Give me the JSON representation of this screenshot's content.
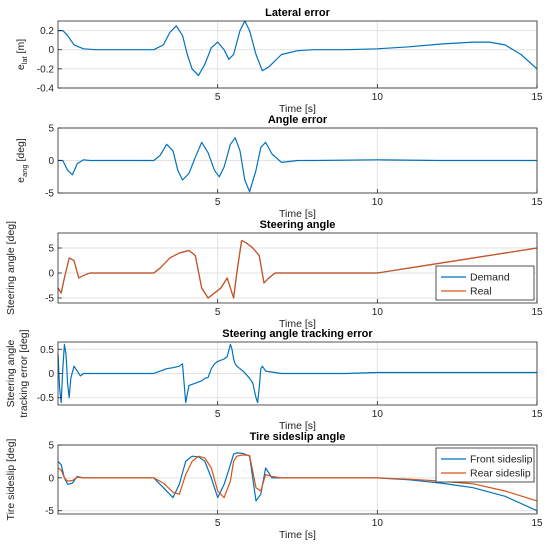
{
  "chart_data": [
    {
      "type": "line",
      "title": "Lateral error",
      "xlabel": "Time [s]",
      "ylabel": "e",
      "ylabel_sub": "lat",
      "ylabel_unit": " [m]",
      "xlim": [
        0,
        15
      ],
      "ylim": [
        -0.4,
        0.3
      ],
      "xticks": [
        5,
        10,
        15
      ],
      "yticks": [
        -0.4,
        -0.2,
        0,
        0.2
      ],
      "ytick_labels": [
        "-0.4",
        "-0.2",
        "0",
        "0.2"
      ],
      "grid": true,
      "series": [
        {
          "color": "#0072BD",
          "x": [
            0,
            0.15,
            0.3,
            0.5,
            0.8,
            1.2,
            2,
            3,
            3.3,
            3.5,
            3.7,
            3.9,
            4.05,
            4.2,
            4.4,
            4.6,
            4.8,
            5.0,
            5.2,
            5.35,
            5.5,
            5.7,
            5.85,
            6.0,
            6.2,
            6.4,
            6.6,
            7,
            7.5,
            8,
            9,
            10,
            10.5,
            11,
            12,
            13,
            13.5,
            14,
            14.5,
            15
          ],
          "y": [
            0.2,
            0.2,
            0.15,
            0.05,
            0.01,
            0.0,
            0.0,
            0.0,
            0.05,
            0.18,
            0.25,
            0.15,
            -0.05,
            -0.2,
            -0.27,
            -0.15,
            0.02,
            0.08,
            0.0,
            -0.1,
            -0.05,
            0.2,
            0.3,
            0.2,
            -0.05,
            -0.22,
            -0.18,
            -0.05,
            -0.01,
            0.0,
            0.0,
            0.01,
            0.02,
            0.03,
            0.06,
            0.08,
            0.08,
            0.05,
            -0.05,
            -0.2
          ]
        }
      ]
    },
    {
      "type": "line",
      "title": "Angle error",
      "xlabel": "Time [s]",
      "ylabel": "e",
      "ylabel_sub": "ang",
      "ylabel_unit": " [deg]",
      "xlim": [
        0,
        15
      ],
      "ylim": [
        -5,
        5
      ],
      "xticks": [
        5,
        10,
        15
      ],
      "yticks": [
        -5,
        0,
        5
      ],
      "ytick_labels": [
        "-5",
        "0",
        "5"
      ],
      "grid": true,
      "series": [
        {
          "color": "#0072BD",
          "x": [
            0,
            0.15,
            0.3,
            0.45,
            0.6,
            0.8,
            1,
            1.5,
            3,
            3.2,
            3.4,
            3.6,
            3.75,
            3.9,
            4.1,
            4.3,
            4.5,
            4.7,
            4.9,
            5.05,
            5.2,
            5.4,
            5.55,
            5.7,
            5.85,
            6.0,
            6.2,
            6.35,
            6.5,
            6.7,
            7,
            7.5,
            8,
            10,
            12,
            15
          ],
          "y": [
            0,
            0,
            -1.5,
            -2.2,
            -0.5,
            0.1,
            0,
            0,
            0,
            0.8,
            2.5,
            1.5,
            -1.5,
            -3,
            -2,
            0.5,
            2.8,
            1.2,
            -1.5,
            -2.5,
            -1,
            2.5,
            3.5,
            1.5,
            -3,
            -4.8,
            -1.5,
            2,
            2.8,
            1,
            -0.3,
            0,
            0,
            0.1,
            0,
            0
          ]
        }
      ]
    },
    {
      "type": "line",
      "title": "Steering angle",
      "xlabel": "Time [s]",
      "ylabel": "Steering angle [deg]",
      "xlim": [
        0,
        15
      ],
      "ylim": [
        -6,
        8
      ],
      "xticks": [
        5,
        10,
        15
      ],
      "yticks": [
        -5,
        0,
        5
      ],
      "ytick_labels": [
        "-5",
        "0",
        "5"
      ],
      "grid": true,
      "legend": {
        "position": "bottom-right",
        "entries": [
          "Demand",
          "Real"
        ]
      },
      "series": [
        {
          "name": "Demand",
          "color": "#0072BD",
          "x": [
            0,
            0.1,
            0.2,
            0.35,
            0.5,
            0.65,
            0.8,
            1,
            1.5,
            3,
            3.2,
            3.5,
            3.8,
            4.1,
            4.3,
            4.5,
            4.7,
            4.9,
            5.1,
            5.3,
            5.5,
            5.6,
            5.75,
            5.9,
            6.1,
            6.3,
            6.45,
            6.6,
            6.8,
            7,
            8,
            9,
            10,
            11,
            12,
            13,
            14,
            15
          ],
          "y": [
            -3,
            -4,
            -1,
            3,
            2.5,
            -1,
            -0.5,
            0,
            0,
            0,
            1,
            3,
            4,
            4.5,
            3.5,
            -3,
            -5,
            -4,
            -3,
            -1,
            -5,
            0,
            6.5,
            6,
            5,
            3.5,
            -2,
            -1,
            0,
            0,
            0,
            0,
            0,
            1,
            2,
            3,
            4,
            5
          ]
        },
        {
          "name": "Real",
          "color": "#D95319",
          "x": [
            0,
            0.1,
            0.2,
            0.35,
            0.5,
            0.65,
            0.8,
            1,
            1.5,
            3,
            3.2,
            3.5,
            3.8,
            4.1,
            4.3,
            4.5,
            4.7,
            4.9,
            5.1,
            5.3,
            5.5,
            5.6,
            5.75,
            5.9,
            6.1,
            6.3,
            6.45,
            6.6,
            6.8,
            7,
            8,
            9,
            10,
            11,
            12,
            13,
            14,
            15
          ],
          "y": [
            -3,
            -4,
            -1,
            3,
            2.5,
            -1,
            -0.5,
            0,
            0,
            0,
            1,
            3,
            4,
            4.5,
            3.5,
            -3,
            -5,
            -4,
            -3,
            -1,
            -5,
            0,
            6.5,
            6,
            5,
            3.5,
            -2,
            -1,
            0,
            0,
            0,
            0,
            0,
            1,
            2,
            3,
            4,
            5
          ]
        }
      ]
    },
    {
      "type": "line",
      "title": "Steering angle tracking error",
      "xlabel": "Time [s]",
      "ylabel": "Steering angle",
      "ylabel2": "tracking error [deg]",
      "xlim": [
        0,
        15
      ],
      "ylim": [
        -0.65,
        0.65
      ],
      "xticks": [
        5,
        10,
        15
      ],
      "yticks": [
        -0.5,
        0,
        0.5
      ],
      "ytick_labels": [
        "-0.5",
        "0",
        "0.5"
      ],
      "grid": true,
      "series": [
        {
          "color": "#0072BD",
          "x": [
            0,
            0.05,
            0.1,
            0.15,
            0.2,
            0.25,
            0.3,
            0.35,
            0.4,
            0.5,
            0.6,
            0.7,
            0.8,
            1,
            2,
            3,
            3.2,
            3.4,
            3.6,
            3.8,
            3.9,
            3.95,
            4.0,
            4.1,
            4.3,
            4.5,
            4.6,
            4.7,
            4.8,
            4.9,
            5.0,
            5.2,
            5.3,
            5.4,
            5.45,
            5.5,
            5.55,
            5.6,
            5.7,
            5.8,
            6.0,
            6.1,
            6.2,
            6.25,
            6.3,
            6.35,
            6.4,
            6.5,
            7,
            8,
            9,
            10,
            12,
            15
          ],
          "y": [
            0.4,
            -0.3,
            -0.6,
            0.1,
            0.6,
            0.4,
            -0.2,
            -0.5,
            -0.1,
            0.15,
            0.05,
            -0.05,
            0,
            0,
            0,
            0,
            0.05,
            0.1,
            0.12,
            0.15,
            0.2,
            -0.2,
            -0.6,
            -0.25,
            -0.2,
            -0.15,
            -0.1,
            -0.08,
            0.1,
            0.2,
            0.25,
            0.3,
            0.35,
            0.6,
            0.5,
            0.3,
            0.2,
            0.15,
            0.1,
            0.05,
            -0.1,
            -0.2,
            -0.5,
            -0.6,
            -0.3,
            0.1,
            0.15,
            0.05,
            0,
            0,
            0,
            0.02,
            0.02,
            0.02
          ]
        }
      ]
    },
    {
      "type": "line",
      "title": "Tire sideslip angle",
      "xlabel": "Time [s]",
      "ylabel": "Tire sideslip [deg]",
      "xlim": [
        0,
        15
      ],
      "ylim": [
        -5.5,
        5
      ],
      "xticks": [
        5,
        10,
        15
      ],
      "yticks": [
        -5,
        0,
        5
      ],
      "ytick_labels": [
        "-5",
        "0",
        "5"
      ],
      "grid": true,
      "legend": {
        "position": "top-right",
        "entries": [
          "Front sideslip",
          "Rear sideslip"
        ]
      },
      "series": [
        {
          "name": "Front sideslip",
          "color": "#0072BD",
          "x": [
            0,
            0.1,
            0.2,
            0.3,
            0.45,
            0.6,
            0.8,
            1,
            2,
            3,
            3.3,
            3.6,
            3.8,
            4.0,
            4.2,
            4.4,
            4.6,
            4.8,
            5.0,
            5.2,
            5.4,
            5.5,
            5.6,
            5.8,
            6.0,
            6.2,
            6.35,
            6.5,
            6.7,
            7,
            8,
            9,
            10,
            11,
            12,
            13,
            14,
            15
          ],
          "y": [
            2.5,
            2,
            0,
            -1,
            -0.8,
            0.2,
            0,
            0,
            0,
            0,
            -1.5,
            -3,
            -1,
            2.5,
            3.3,
            3.2,
            2.5,
            0,
            -3,
            -1,
            2,
            3.6,
            3.8,
            3.7,
            3.3,
            -3.5,
            -2.5,
            1.5,
            0,
            0,
            0,
            0,
            0,
            -0.3,
            -0.8,
            -1.5,
            -2.8,
            -5
          ]
        },
        {
          "name": "Rear sideslip",
          "color": "#D95319",
          "x": [
            0,
            0.1,
            0.2,
            0.3,
            0.45,
            0.6,
            0.8,
            1,
            2,
            3,
            3.3,
            3.6,
            3.8,
            4.0,
            4.2,
            4.4,
            4.6,
            4.8,
            5.0,
            5.2,
            5.4,
            5.5,
            5.6,
            5.8,
            6.0,
            6.2,
            6.35,
            6.5,
            6.7,
            7,
            8,
            9,
            10,
            11,
            12,
            13,
            14,
            15
          ],
          "y": [
            1.5,
            1.2,
            0,
            -0.5,
            -0.4,
            0.1,
            0,
            0,
            0,
            0,
            -0.8,
            -2.2,
            -2.5,
            0.5,
            2.5,
            3.3,
            3.0,
            1.5,
            -2,
            -3,
            -0.5,
            2.5,
            3.3,
            3.5,
            3.4,
            -1.5,
            -2,
            0.5,
            0.2,
            0,
            0,
            0,
            0,
            -0.2,
            -0.5,
            -0.9,
            -2,
            -3.5
          ]
        }
      ]
    }
  ]
}
